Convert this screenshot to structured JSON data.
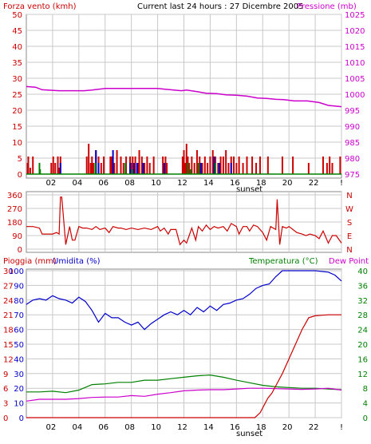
{
  "header": {
    "left_label": "Forza vento (kmh)",
    "center_label": "Current last 24 hours : 27 Dicembre 2005",
    "right_label": "Pressione (mb)"
  },
  "colors": {
    "frame": "#888888",
    "wind": "#cc0000",
    "gust_blue": "#0000cc",
    "gust_green": "#008000",
    "pressure": "#cc00cc",
    "direction": "#cc0000",
    "rain": "#cc0000",
    "humidity": "#0000cc",
    "temperature": "#008000",
    "dewpoint": "#cc00cc",
    "left_axis_text": "#cc0000",
    "rain_axis_text": "#cc0000",
    "hum_axis_text": "#0000cc",
    "temp_axis_text": "#008000",
    "dew_label": "#cc00cc",
    "dir_axis_text": "#cc0000"
  },
  "chart_data": [
    {
      "id": "wind_pressure",
      "type": "bar",
      "left_axis": {
        "label": "Forza vento (kmh)",
        "range": [
          0,
          50
        ],
        "ticks": [
          0,
          5,
          10,
          15,
          20,
          25,
          30,
          35,
          40,
          45,
          50
        ]
      },
      "right_axis": {
        "label": "Pressione (mb)",
        "range": [
          975,
          1025
        ],
        "ticks": [
          975,
          980,
          985,
          990,
          995,
          1000,
          1005,
          1010,
          1015,
          1020,
          1025
        ]
      },
      "x_ticks": [
        "02",
        "04",
        "06",
        "08",
        "10",
        "12",
        "14",
        "16",
        "18",
        "20",
        "22",
        "!"
      ],
      "x_marker": "sunset",
      "grid": true,
      "pressure": {
        "x": [
          0,
          0.7,
          1.2,
          2.5,
          4.4,
          5,
          6,
          7,
          8.3,
          9,
          10,
          10.5,
          11.8,
          12.2,
          13,
          13.7,
          14.5,
          15.2,
          16,
          16.8,
          17.6,
          18.3,
          19,
          19.6,
          20.4,
          21.4,
          22.3,
          23,
          24
        ],
        "y": [
          1002.4,
          1002.2,
          1001.4,
          1001.1,
          1001.1,
          1001.3,
          1001.8,
          1001.8,
          1001.8,
          1001.8,
          1001.8,
          1001.6,
          1001.1,
          1001.3,
          1000.8,
          1000.3,
          1000.2,
          999.8,
          999.7,
          999.4,
          998.8,
          998.7,
          998.4,
          998.3,
          997.9,
          997.9,
          997.4,
          996.5,
          996.1
        ]
      },
      "wind": {
        "x": [
          0.1,
          0.15,
          0.3,
          0.5,
          1.9,
          2.05,
          2.2,
          2.4,
          2.5,
          2.6,
          4.6,
          4.75,
          4.9,
          5,
          5.1,
          5.3,
          5.5,
          5.7,
          5.9,
          6.4,
          6.5,
          6.7,
          6.9,
          7.2,
          7.4,
          7.6,
          7.9,
          8,
          8.1,
          8.3,
          8.5,
          8.6,
          8.8,
          9,
          9.2,
          9.4,
          9.7,
          10.4,
          10.5,
          10.6,
          10.7,
          11.9,
          12,
          12.1,
          12.2,
          12.3,
          12.4,
          12.6,
          12.8,
          13,
          13.2,
          13.4,
          13.6,
          13.8,
          14,
          14.2,
          14.4,
          14.6,
          14.8,
          15,
          15.2,
          15.4,
          15.6,
          15.8,
          16,
          16.2,
          16.5,
          16.8,
          17.2,
          17.5,
          17.8,
          18.4,
          19.5,
          20.3,
          21.5,
          22.6,
          22.9,
          23.1,
          23.3,
          23.9
        ],
        "y": [
          3.5,
          5.5,
          2,
          5.5,
          3.5,
          5.5,
          3.5,
          5.5,
          2,
          5.5,
          5.5,
          9.5,
          3.5,
          5.5,
          3.5,
          7.5,
          5.5,
          3.5,
          5.5,
          5.5,
          5.5,
          3.5,
          7.5,
          5.5,
          3.5,
          5.5,
          5.5,
          3.5,
          5.5,
          5.5,
          3.5,
          7.5,
          5.5,
          3.5,
          5.5,
          3.5,
          5.5,
          5.5,
          3.5,
          5.5,
          3.5,
          5.5,
          7.5,
          3.5,
          9.5,
          5.5,
          3.5,
          5.5,
          3.5,
          7.5,
          5.5,
          3.5,
          5.5,
          3.5,
          5.5,
          7.5,
          5.5,
          3.5,
          5.5,
          5.5,
          7.5,
          3.5,
          5.5,
          5.5,
          3.5,
          5.5,
          3.5,
          5.5,
          5.5,
          3.5,
          5.5,
          5.5,
          5.5,
          5.5,
          3.5,
          5.5,
          3.5,
          5.5,
          3.5,
          5.5
        ]
      },
      "gust_blue": {
        "x": [
          2.6,
          5.3,
          5.5,
          6.6,
          7.9,
          8.2,
          8.45,
          8.9,
          10.5,
          13.3,
          14.3,
          14.7,
          15.6
        ],
        "y": [
          3.5,
          7.5,
          3.5,
          7.5,
          3.5,
          3.5,
          3.5,
          3.5,
          3.5,
          3.5,
          5.5,
          3.5,
          3.5
        ]
      },
      "gust_green": {
        "x": [
          1.0,
          1.05,
          5.25,
          7.55,
          8.05,
          12.3,
          12.5,
          13.1,
          14.4
        ],
        "y": [
          3.5,
          1.5,
          3.5,
          3.5,
          1.5,
          3.5,
          1.5,
          3.5,
          3.5
        ]
      }
    },
    {
      "id": "wind_direction",
      "type": "line",
      "left_axis": {
        "range": [
          0,
          360
        ],
        "ticks": [
          0,
          90,
          180,
          270,
          360
        ]
      },
      "right_labels": [
        "N",
        "W",
        "S",
        "E",
        "N"
      ],
      "grid": true,
      "direction": {
        "x": [
          0,
          0.5,
          1,
          1.2,
          1.5,
          2,
          2.3,
          2.5,
          2.6,
          2.7,
          3,
          3.3,
          3.5,
          3.7,
          4,
          4.3,
          4.6,
          5,
          5.3,
          5.6,
          6,
          6.3,
          6.6,
          7,
          7.2,
          7.6,
          8,
          8.5,
          9,
          9.5,
          10,
          10.2,
          10.5,
          10.8,
          11,
          11.4,
          11.7,
          12,
          12.2,
          12.4,
          12.6,
          12.9,
          13.1,
          13.4,
          13.7,
          14,
          14.3,
          14.6,
          15,
          15.3,
          15.6,
          16,
          16.2,
          16.5,
          16.8,
          17,
          17.3,
          17.6,
          18,
          18.3,
          18.6,
          19,
          19.1,
          19.3,
          19.5,
          19.8,
          20,
          20.3,
          20.6,
          21,
          21.3,
          21.6,
          22,
          22.3,
          22.6,
          23,
          23.3,
          23.6,
          24
        ],
        "y": [
          150,
          150,
          140,
          100,
          100,
          100,
          110,
          100,
          345,
          345,
          30,
          150,
          60,
          60,
          150,
          140,
          140,
          130,
          150,
          130,
          140,
          110,
          150,
          140,
          140,
          130,
          140,
          130,
          140,
          130,
          150,
          120,
          140,
          100,
          130,
          130,
          30,
          60,
          40,
          90,
          140,
          60,
          150,
          120,
          160,
          130,
          150,
          140,
          150,
          120,
          170,
          150,
          100,
          150,
          150,
          120,
          160,
          150,
          110,
          60,
          150,
          130,
          330,
          30,
          150,
          140,
          150,
          130,
          110,
          100,
          90,
          100,
          90,
          70,
          120,
          40,
          90,
          90,
          40
        ]
      }
    },
    {
      "id": "rain_humidity_temperature",
      "type": "line",
      "left_rain_axis": {
        "label": "Pioggia (mm)",
        "range": [
          0,
          30
        ],
        "ticks": [
          0,
          3,
          6,
          9,
          12,
          15,
          18,
          21,
          24,
          27,
          30
        ]
      },
      "left_hum_axis": {
        "label": "Umidita (%)",
        "range": [
          0,
          100
        ],
        "ticks": [
          0,
          10,
          20,
          30,
          40,
          50,
          60,
          70,
          80,
          90,
          100
        ]
      },
      "right_axis": {
        "label": "Temperatura (°C)",
        "range": [
          0,
          40
        ],
        "ticks": [
          0,
          4,
          8,
          12,
          16,
          20,
          24,
          28,
          32,
          36,
          40
        ]
      },
      "dew_label": "Dew Point",
      "x_ticks": [
        "02",
        "04",
        "06",
        "08",
        "10",
        "12",
        "14",
        "16",
        "18",
        "20",
        "22",
        "!"
      ],
      "x_marker": "sunset",
      "grid": true,
      "humidity": {
        "x": [
          0,
          0.5,
          1,
          1.5,
          2,
          2.5,
          3,
          3.5,
          4,
          4.5,
          5,
          5.5,
          6,
          6.5,
          7,
          7.5,
          8,
          8.5,
          9,
          9.5,
          10,
          10.5,
          11,
          11.5,
          12,
          12.5,
          13,
          13.5,
          14,
          14.5,
          15,
          15.5,
          16,
          16.5,
          17,
          17.5,
          18,
          18.5,
          19,
          19.5,
          20,
          21,
          22,
          23,
          23.5,
          24
        ],
        "y": [
          77,
          80,
          81,
          80,
          83,
          81,
          80,
          78,
          82,
          79,
          73,
          65,
          71,
          68,
          68,
          65,
          63,
          65,
          60,
          64,
          67,
          70,
          72,
          70,
          73,
          70,
          75,
          72,
          76,
          73,
          77,
          78,
          80,
          81,
          84,
          88,
          90,
          91,
          96,
          100,
          100,
          100,
          100,
          99,
          97,
          93
        ]
      },
      "temperature": {
        "x": [
          0,
          1,
          2,
          3,
          4,
          5,
          6,
          7,
          8,
          9,
          10,
          11,
          12,
          13,
          14,
          15,
          16,
          17,
          18,
          19,
          20,
          21,
          22,
          23,
          24
        ],
        "y": [
          7,
          7,
          7.2,
          6.8,
          7.5,
          9,
          9.2,
          9.6,
          9.6,
          10.2,
          10.2,
          10.6,
          11,
          11.4,
          11.6,
          11,
          10.2,
          9.5,
          8.8,
          8.4,
          8.2,
          8,
          8,
          7.8,
          7.6
        ]
      },
      "dewpoint": {
        "x": [
          0,
          1,
          2,
          3,
          4,
          5,
          6,
          7,
          8,
          9,
          10,
          11,
          12,
          13,
          14,
          15,
          16,
          17,
          18,
          19,
          20,
          21,
          22,
          23,
          24
        ],
        "y": [
          4.5,
          5,
          5,
          5,
          5.2,
          5.5,
          5.6,
          5.6,
          6,
          5.8,
          6.4,
          6.8,
          7.3,
          7.5,
          7.6,
          7.6,
          7.8,
          8,
          8,
          7.9,
          7.8,
          7.7,
          7.8,
          8,
          7.5
        ]
      },
      "rain": {
        "x": [
          0,
          15,
          17.4,
          17.8,
          18.1,
          18.4,
          18.7,
          19,
          19.5,
          20,
          20.5,
          21,
          21.5,
          22,
          22.5,
          23,
          24
        ],
        "y": [
          0,
          0,
          0,
          1,
          2.5,
          4,
          5,
          6.5,
          9,
          12,
          15,
          18,
          20.4,
          20.8,
          20.9,
          21,
          21
        ]
      }
    }
  ]
}
